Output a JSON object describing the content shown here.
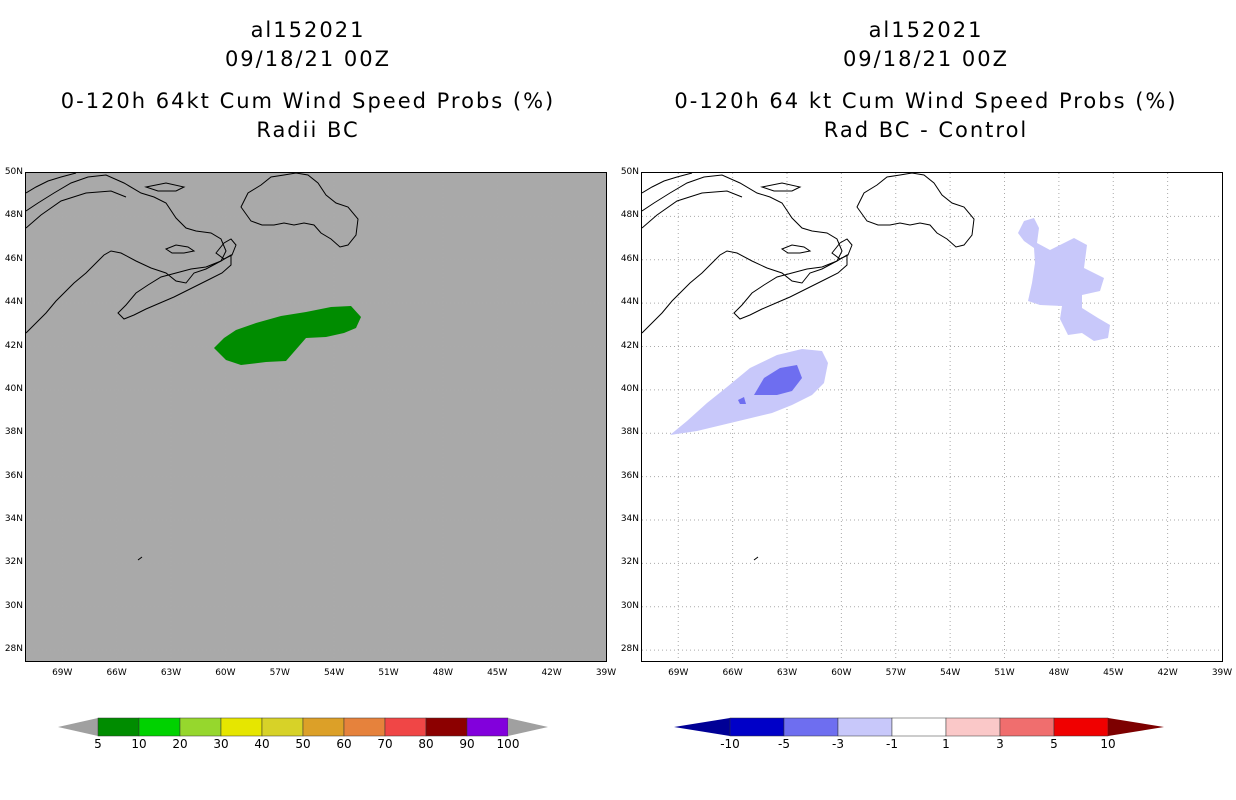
{
  "left": {
    "title_lines": [
      "al152021",
      "09/18/21 00Z",
      "0-120h 64kt Cum Wind Speed Probs (%)",
      "Radii BC"
    ],
    "background_color": "#a9a9a9",
    "colorbar": {
      "colors": [
        "#008c00",
        "#00d200",
        "#96d72d",
        "#e6e600",
        "#d7d228",
        "#dca028",
        "#e6823c",
        "#f04646",
        "#8c0000",
        "#8200dc"
      ],
      "under_color": "#a0a0a0",
      "over_color": "#a0a0a0",
      "labels": [
        "5",
        "10",
        "20",
        "30",
        "40",
        "50",
        "60",
        "70",
        "80",
        "90",
        "100"
      ]
    }
  },
  "right": {
    "title_lines": [
      "al152021",
      "09/18/21 00Z",
      "0-120h 64 kt Cum Wind Speed Probs (%)",
      "Rad BC - Control"
    ],
    "background_color": "#ffffff",
    "colorbar": {
      "colors": [
        "#0000c8",
        "#6e6ef0",
        "#c8c8fa",
        "#ffffff",
        "#fac8c8",
        "#f06e6e",
        "#f00000"
      ],
      "under_color": "#000096",
      "over_color": "#7d0000",
      "labels": [
        "-10",
        "-5",
        "-3",
        "-1",
        "1",
        "3",
        "5",
        "10"
      ]
    }
  },
  "map": {
    "lat_labels": [
      "50N",
      "48N",
      "46N",
      "44N",
      "42N",
      "40N",
      "38N",
      "36N",
      "34N",
      "32N",
      "30N",
      "28N"
    ],
    "lon_labels": [
      "69W",
      "66W",
      "63W",
      "60W",
      "57W",
      "54W",
      "51W",
      "48W",
      "45W",
      "42W",
      "39W"
    ],
    "lon_range": [
      -71,
      -39
    ],
    "lat_range": [
      27.5,
      50
    ],
    "grid_style": "dotted",
    "coastline_color": "#000000"
  }
}
